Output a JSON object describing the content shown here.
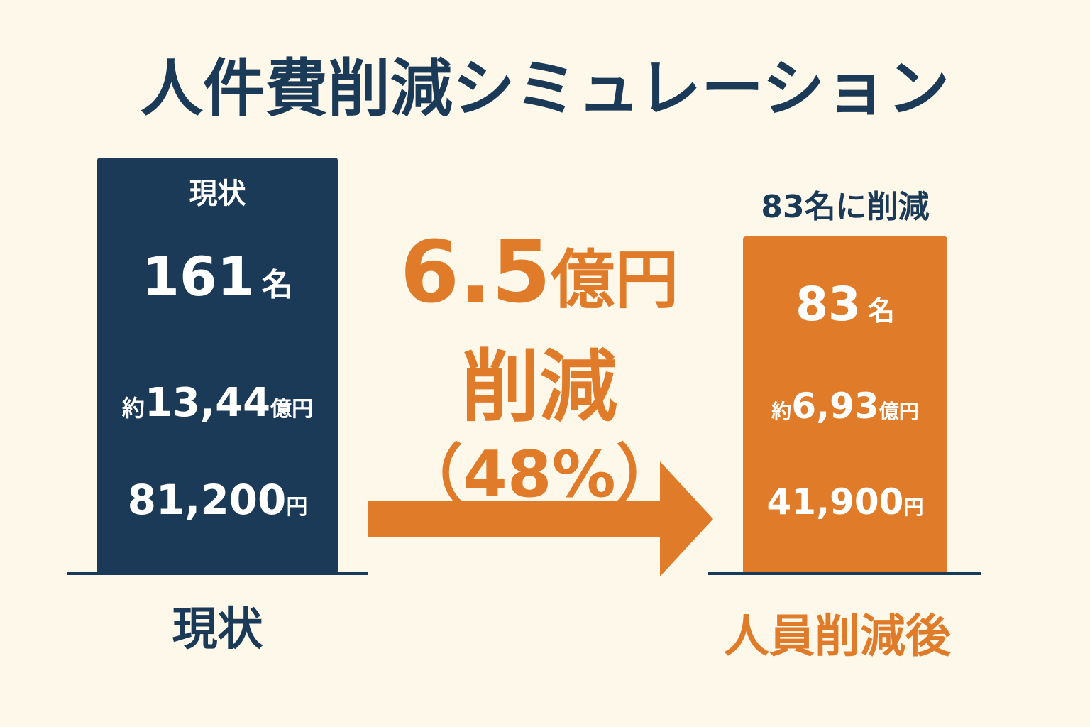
{
  "header": {
    "title": "人件費削減シミュレーション"
  },
  "current": {
    "header": "現状",
    "headcount": "161",
    "headcount_unit": "名",
    "cost_prefix": "約",
    "cost": "13,44",
    "cost_unit": "億円",
    "salary": "81,200",
    "salary_unit": "円",
    "footer": "現状"
  },
  "reduction": {
    "amount": "6.5",
    "amount_unit": "億円",
    "label": "削減",
    "percent": "（48%）"
  },
  "after": {
    "caption": "83名に削減",
    "headcount": "83",
    "headcount_unit": "名",
    "cost_prefix": "約",
    "cost": "6,93",
    "cost_unit": "億円",
    "salary": "41,900",
    "salary_unit": "円",
    "footer": "人員削減後"
  }
}
